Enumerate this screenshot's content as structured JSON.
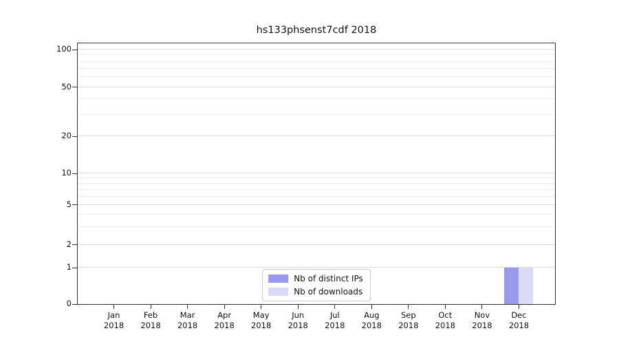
{
  "chart_data": {
    "type": "bar",
    "title": "hs133phsenst7cdf 2018",
    "categories": [
      "Jan",
      "Feb",
      "Mar",
      "Apr",
      "May",
      "Jun",
      "Jul",
      "Aug",
      "Sep",
      "Oct",
      "Nov",
      "Dec"
    ],
    "x_tick_second_line": "2018",
    "series": [
      {
        "name": "Nb of distinct IPs",
        "color": "#9999ee",
        "values": [
          0,
          0,
          0,
          0,
          0,
          0,
          0,
          0,
          0,
          0,
          0,
          1
        ]
      },
      {
        "name": "Nb of downloads",
        "color": "#d9d9f8",
        "values": [
          0,
          0,
          0,
          0,
          0,
          0,
          0,
          0,
          0,
          0,
          0,
          1
        ]
      }
    ],
    "y_ticks": [
      0,
      1,
      2,
      5,
      10,
      20,
      50,
      100
    ],
    "y_minor_ticks": [
      3,
      4,
      6,
      7,
      8,
      9,
      30,
      40,
      60,
      70,
      80,
      90
    ],
    "ylim": [
      0,
      110
    ],
    "y_scale": "symlog",
    "grid": true,
    "legend_position": "lower center"
  }
}
